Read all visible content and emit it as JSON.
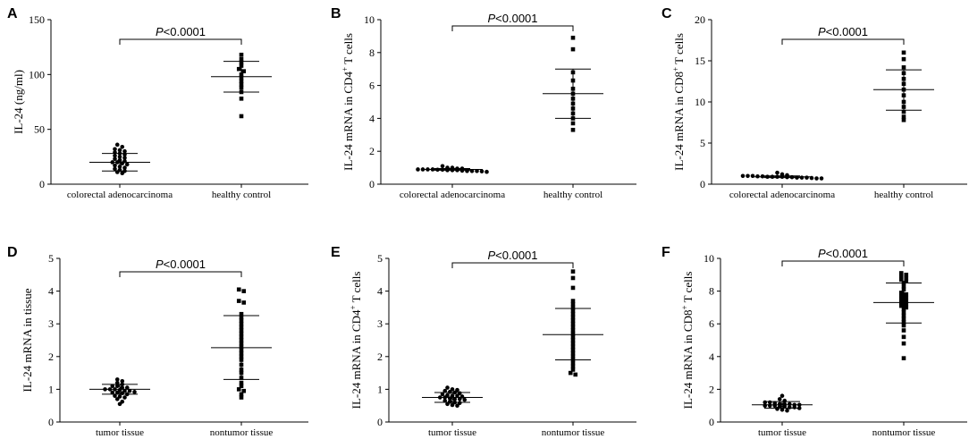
{
  "chart_data": [
    {
      "type": "scatter",
      "panel": "A",
      "ylabel": "IL-24 (ng/ml)",
      "ylabel_sup": "",
      "ylabel_suffix": "",
      "ylim": [
        0,
        150
      ],
      "yticks": [
        "0",
        "50",
        "100",
        "150"
      ],
      "categories": [
        "colorectal adenocarcinoma",
        "healthy control"
      ],
      "significance": {
        "p": "P",
        "rest": "<0.0001"
      },
      "series": [
        {
          "name": "colorectal adenocarcinoma",
          "marker": "circle",
          "mean": 20,
          "sd_low": 12,
          "sd_high": 28,
          "values": [
            36,
            34,
            32,
            31,
            30,
            29,
            28,
            27,
            26,
            25,
            24,
            23,
            22,
            21,
            20,
            20,
            19,
            18,
            17,
            16,
            15,
            14,
            13,
            12,
            11,
            10
          ]
        },
        {
          "name": "healthy control",
          "marker": "square",
          "mean": 98,
          "sd_low": 84,
          "sd_high": 112,
          "values": [
            118,
            114,
            111,
            108,
            105,
            103,
            100,
            97,
            94,
            91,
            88,
            84,
            78,
            62
          ]
        }
      ]
    },
    {
      "type": "scatter",
      "panel": "B",
      "ylabel": "IL-24 mRNA in CD4",
      "ylabel_sup": "+",
      "ylabel_suffix": " T cells",
      "ylim": [
        0,
        10
      ],
      "yticks": [
        "0",
        "2",
        "4",
        "6",
        "8",
        "10"
      ],
      "categories": [
        "colorectal adenocarcinoma",
        "healthy control"
      ],
      "significance": {
        "p": "P",
        "rest": "<0.0001"
      },
      "series": [
        {
          "name": "colorectal adenocarcinoma",
          "marker": "circle",
          "mean": 0.9,
          "sd_low": 0.85,
          "sd_high": 0.95,
          "values": [
            1.1,
            1.0,
            1.0,
            0.95,
            0.95,
            0.9,
            0.9,
            0.9,
            0.9,
            0.88,
            0.88,
            0.85,
            0.85,
            0.85,
            0.82,
            0.8,
            0.8,
            0.8,
            0.78,
            0.75
          ]
        },
        {
          "name": "healthy control",
          "marker": "square",
          "mean": 5.5,
          "sd_low": 4.0,
          "sd_high": 7.0,
          "values": [
            8.9,
            8.2,
            6.8,
            6.3,
            5.8,
            5.5,
            5.2,
            4.9,
            4.6,
            4.3,
            4.0,
            3.7,
            3.3
          ]
        }
      ]
    },
    {
      "type": "scatter",
      "panel": "C",
      "ylabel": "IL-24 mRNA in CD8",
      "ylabel_sup": "+",
      "ylabel_suffix": " T cells",
      "ylim": [
        0,
        20
      ],
      "yticks": [
        "0",
        "5",
        "10",
        "15",
        "20"
      ],
      "categories": [
        "colorectal adenocarcinoma",
        "healthy control"
      ],
      "significance": {
        "p": "P",
        "rest": "<0.0001"
      },
      "series": [
        {
          "name": "colorectal adenocarcinoma",
          "marker": "circle",
          "mean": 0.9,
          "sd_low": 0.8,
          "sd_high": 1.0,
          "values": [
            1.4,
            1.2,
            1.1,
            1.0,
            1.0,
            1.0,
            0.95,
            0.95,
            0.9,
            0.9,
            0.9,
            0.9,
            0.85,
            0.85,
            0.8,
            0.8,
            0.8,
            0.75,
            0.7,
            0.7
          ]
        },
        {
          "name": "healthy control",
          "marker": "square",
          "mean": 11.5,
          "sd_low": 9.0,
          "sd_high": 13.9,
          "values": [
            16.0,
            15.2,
            14.2,
            13.5,
            12.8,
            12.2,
            11.5,
            10.8,
            10.0,
            9.4,
            8.8,
            8.2,
            7.8
          ]
        }
      ]
    },
    {
      "type": "scatter",
      "panel": "D",
      "ylabel": "IL-24 mRNA in tissue",
      "ylabel_sup": "",
      "ylabel_suffix": "",
      "ylim": [
        0,
        5
      ],
      "yticks": [
        "0",
        "1",
        "2",
        "3",
        "4",
        "5"
      ],
      "categories": [
        "tumor tissue",
        "nontumor tissue"
      ],
      "significance": {
        "p": "P",
        "rest": "<0.0001"
      },
      "series": [
        {
          "name": "tumor tissue",
          "marker": "circle",
          "mean": 1.0,
          "sd_low": 0.85,
          "sd_high": 1.15,
          "values": [
            1.3,
            1.25,
            1.2,
            1.15,
            1.1,
            1.1,
            1.05,
            1.05,
            1.0,
            1.0,
            1.0,
            0.98,
            0.95,
            0.95,
            0.92,
            0.9,
            0.9,
            0.88,
            0.85,
            0.8,
            0.78,
            0.75,
            0.7,
            0.62,
            0.55
          ]
        },
        {
          "name": "nontumor tissue",
          "marker": "square",
          "mean": 2.27,
          "sd_low": 1.3,
          "sd_high": 3.25,
          "values": [
            4.05,
            4.0,
            3.7,
            3.65,
            3.3,
            3.2,
            3.1,
            3.0,
            2.9,
            2.8,
            2.7,
            2.6,
            2.5,
            2.4,
            2.3,
            2.2,
            2.1,
            2.0,
            1.9,
            1.75,
            1.6,
            1.5,
            1.35,
            1.2,
            1.1,
            1.0,
            0.95,
            0.85,
            0.75
          ]
        }
      ]
    },
    {
      "type": "scatter",
      "panel": "E",
      "ylabel": "IL-24 mRNA in CD4",
      "ylabel_sup": "+",
      "ylabel_suffix": " T cells",
      "ylim": [
        0,
        5
      ],
      "yticks": [
        "0",
        "1",
        "2",
        "3",
        "4",
        "5"
      ],
      "categories": [
        "tumor tissue",
        "nontumor tissue"
      ],
      "significance": {
        "p": "P",
        "rest": "<0.0001"
      },
      "series": [
        {
          "name": "tumor tissue",
          "marker": "circle",
          "mean": 0.75,
          "sd_low": 0.6,
          "sd_high": 0.9,
          "values": [
            1.05,
            1.0,
            0.98,
            0.95,
            0.92,
            0.9,
            0.88,
            0.85,
            0.82,
            0.8,
            0.8,
            0.78,
            0.75,
            0.75,
            0.72,
            0.7,
            0.7,
            0.68,
            0.65,
            0.62,
            0.6,
            0.58,
            0.55,
            0.52,
            0.5
          ]
        },
        {
          "name": "nontumor tissue",
          "marker": "square",
          "mean": 2.67,
          "sd_low": 1.9,
          "sd_high": 3.47,
          "values": [
            4.6,
            4.4,
            4.1,
            3.7,
            3.6,
            3.5,
            3.4,
            3.3,
            3.2,
            3.1,
            3.0,
            2.9,
            2.8,
            2.7,
            2.6,
            2.5,
            2.4,
            2.3,
            2.2,
            2.1,
            2.0,
            1.9,
            1.8,
            1.7,
            1.6,
            1.5,
            1.45
          ]
        }
      ]
    },
    {
      "type": "scatter",
      "panel": "F",
      "ylabel": "IL-24 mRNA in CD8",
      "ylabel_sup": "+",
      "ylabel_suffix": " T cells",
      "ylim": [
        0,
        10
      ],
      "yticks": [
        "0",
        "2",
        "4",
        "6",
        "8",
        "10"
      ],
      "categories": [
        "tumor tissue",
        "nontumor tissue"
      ],
      "significance": {
        "p": "P",
        "rest": "<0.0001"
      },
      "series": [
        {
          "name": "tumor tissue",
          "marker": "circle",
          "mean": 1.05,
          "sd_low": 0.85,
          "sd_high": 1.25,
          "values": [
            1.6,
            1.4,
            1.3,
            1.2,
            1.2,
            1.15,
            1.1,
            1.1,
            1.1,
            1.05,
            1.05,
            1.0,
            1.0,
            1.0,
            0.95,
            0.95,
            0.9,
            0.9,
            0.85,
            0.8,
            0.75,
            0.7
          ]
        },
        {
          "name": "nontumor tissue",
          "marker": "square",
          "mean": 7.3,
          "sd_low": 6.05,
          "sd_high": 8.5,
          "values": [
            9.1,
            9.0,
            8.9,
            8.8,
            8.7,
            8.6,
            8.5,
            8.3,
            8.1,
            7.9,
            7.8,
            7.7,
            7.6,
            7.5,
            7.4,
            7.3,
            7.2,
            7.1,
            7.0,
            6.9,
            6.7,
            6.5,
            6.3,
            6.1,
            5.9,
            5.6,
            5.2,
            4.8,
            3.9
          ]
        }
      ]
    }
  ]
}
